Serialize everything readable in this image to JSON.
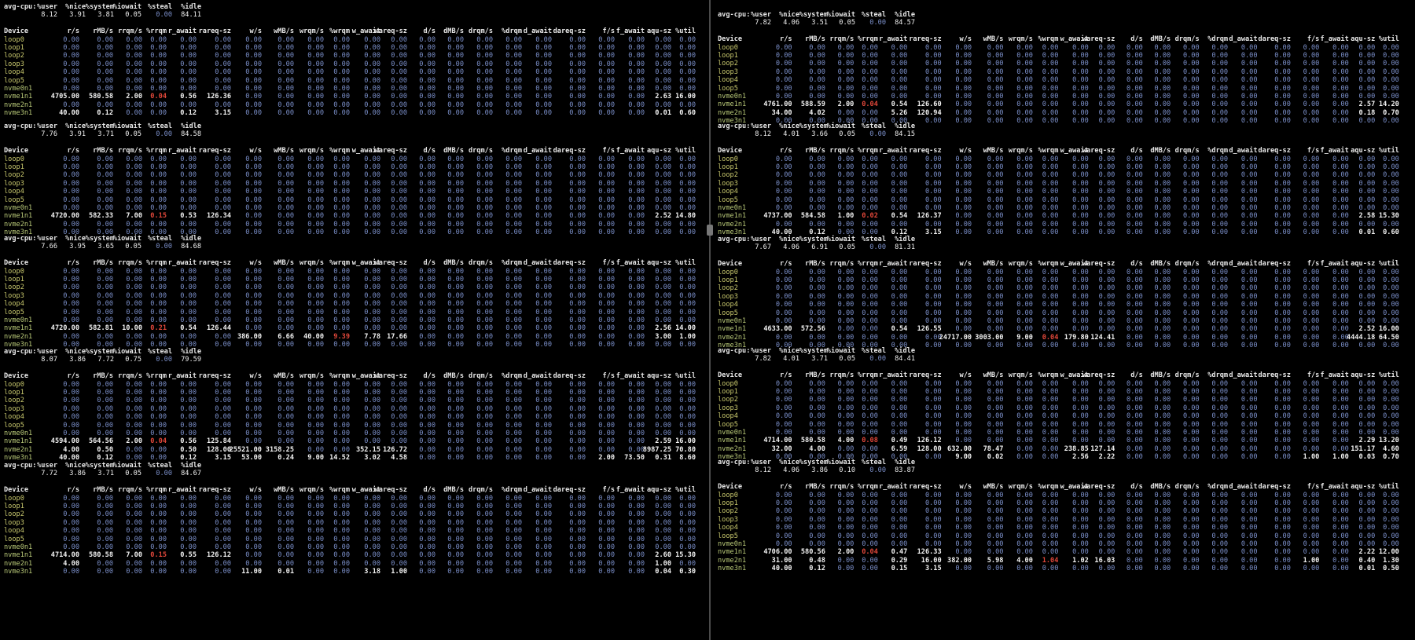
{
  "colors": {
    "background": "#000000",
    "zero": "#7b8fc9",
    "value": "#f2f2f2",
    "highlight": "#e0473a",
    "device": "#c9c96e"
  },
  "cpu_columns": [
    "avg-cpu:",
    "%user",
    "%nice",
    "%system",
    "%iowait",
    "%steal",
    "%idle"
  ],
  "device_columns": [
    "Device",
    "r/s",
    "rMB/s",
    "rrqm/s",
    "%rrqm",
    "r_await",
    "rareq-sz",
    "w/s",
    "wMB/s",
    "wrqm/s",
    "%wrqm",
    "w_await",
    "wareq-sz",
    "d/s",
    "dMB/s",
    "drqm/s",
    "%drqm",
    "d_await",
    "dareq-sz",
    "f/s",
    "f_await",
    "aqu-sz",
    "%util"
  ],
  "devices": [
    "loop0",
    "loop1",
    "loop2",
    "loop3",
    "loop4",
    "loop5",
    "nvme0n1",
    "nvme1n1",
    "nvme2n1",
    "nvme3n1"
  ],
  "panes": [
    {
      "name": "left",
      "blocks": [
        {
          "cpu": [
            "8.12",
            "3.91",
            "3.81",
            "0.05",
            "0.00",
            "84.11"
          ],
          "rows": {
            "nvme1n1": [
              "4705.00",
              "580.58",
              "2.00",
              "0.04",
              "0.56",
              "126.36",
              "0.00",
              "0.00",
              "0.00",
              "0.00",
              "0.00",
              "0.00",
              "0.00",
              "0.00",
              "0.00",
              "0.00",
              "0.00",
              "0.00",
              "0.00",
              "0.00",
              "2.63",
              "16.00"
            ],
            "nvme3n1": [
              "40.00",
              "0.12",
              "0.00",
              "0.00",
              "0.12",
              "3.15",
              "0.00",
              "0.00",
              "0.00",
              "0.00",
              "0.00",
              "0.00",
              "0.00",
              "0.00",
              "0.00",
              "0.00",
              "0.00",
              "0.00",
              "0.00",
              "0.00",
              "0.01",
              "0.60"
            ]
          }
        },
        {
          "cpu": [
            "7.76",
            "3.91",
            "3.71",
            "0.05",
            "0.00",
            "84.58"
          ],
          "rows": {
            "nvme1n1": [
              "4720.00",
              "582.33",
              "7.00",
              "0.15",
              "0.53",
              "126.34",
              "0.00",
              "0.00",
              "0.00",
              "0.00",
              "0.00",
              "0.00",
              "0.00",
              "0.00",
              "0.00",
              "0.00",
              "0.00",
              "0.00",
              "0.00",
              "0.00",
              "2.52",
              "14.80"
            ]
          }
        },
        {
          "cpu": [
            "7.66",
            "3.95",
            "3.65",
            "0.05",
            "0.00",
            "84.68"
          ],
          "rows": {
            "nvme1n1": [
              "4720.00",
              "582.81",
              "10.00",
              "0.21",
              "0.54",
              "126.44",
              "0.00",
              "0.00",
              "0.00",
              "0.00",
              "0.00",
              "0.00",
              "0.00",
              "0.00",
              "0.00",
              "0.00",
              "0.00",
              "0.00",
              "0.00",
              "0.00",
              "2.56",
              "14.00"
            ],
            "nvme2n1": [
              "0.00",
              "0.00",
              "0.00",
              "0.00",
              "0.00",
              "0.00",
              "386.00",
              "6.66",
              "40.00",
              "9.39",
              "7.78",
              "17.66",
              "0.00",
              "0.00",
              "0.00",
              "0.00",
              "0.00",
              "0.00",
              "0.00",
              "0.00",
              "3.00",
              "1.00"
            ]
          }
        },
        {
          "cpu": [
            "8.07",
            "3.86",
            "7.72",
            "0.75",
            "0.00",
            "79.59"
          ],
          "rows": {
            "nvme1n1": [
              "4594.00",
              "564.56",
              "2.00",
              "0.04",
              "0.56",
              "125.84",
              "0.00",
              "0.00",
              "0.00",
              "0.00",
              "0.00",
              "0.00",
              "0.00",
              "0.00",
              "0.00",
              "0.00",
              "0.00",
              "0.00",
              "0.00",
              "0.00",
              "2.59",
              "16.00"
            ],
            "nvme2n1": [
              "4.00",
              "0.50",
              "0.00",
              "0.00",
              "0.50",
              "128.00",
              "25521.00",
              "3158.25",
              "0.00",
              "0.00",
              "352.15",
              "126.72",
              "0.00",
              "0.00",
              "0.00",
              "0.00",
              "0.00",
              "0.00",
              "0.00",
              "0.00",
              "8987.25",
              "70.80"
            ],
            "nvme3n1": [
              "40.00",
              "0.12",
              "0.00",
              "0.00",
              "0.12",
              "3.15",
              "53.00",
              "0.24",
              "9.00",
              "14.52",
              "3.02",
              "4.58",
              "0.00",
              "0.00",
              "0.00",
              "0.00",
              "0.00",
              "0.00",
              "2.00",
              "73.50",
              "0.31",
              "8.60"
            ]
          }
        },
        {
          "cpu": [
            "7.72",
            "3.86",
            "3.71",
            "0.05",
            "0.00",
            "84.67"
          ],
          "rows": {
            "nvme1n1": [
              "4714.00",
              "580.58",
              "7.00",
              "0.15",
              "0.55",
              "126.12",
              "0.00",
              "0.00",
              "0.00",
              "0.00",
              "0.00",
              "0.00",
              "0.00",
              "0.00",
              "0.00",
              "0.00",
              "0.00",
              "0.00",
              "0.00",
              "0.00",
              "2.60",
              "15.30"
            ],
            "nvme2n1": [
              "4.00",
              "0.00",
              "0.00",
              "0.00",
              "0.00",
              "0.00",
              "0.00",
              "0.00",
              "0.00",
              "0.00",
              "0.00",
              "0.00",
              "0.00",
              "0.00",
              "0.00",
              "0.00",
              "0.00",
              "0.00",
              "0.00",
              "0.00",
              "1.00",
              "0.00"
            ],
            "nvme3n1": [
              "0.00",
              "0.00",
              "0.00",
              "0.00",
              "0.00",
              "0.00",
              "11.00",
              "0.01",
              "0.00",
              "0.00",
              "3.18",
              "1.00",
              "0.00",
              "0.00",
              "0.00",
              "0.00",
              "0.00",
              "0.00",
              "0.00",
              "0.00",
              "0.04",
              "0.30"
            ]
          }
        }
      ]
    },
    {
      "name": "right",
      "blocks": [
        {
          "cpu": [
            "7.82",
            "4.06",
            "3.51",
            "0.05",
            "0.00",
            "84.57"
          ],
          "rows": {
            "nvme1n1": [
              "4761.00",
              "588.59",
              "2.00",
              "0.04",
              "0.54",
              "126.60",
              "0.00",
              "0.00",
              "0.00",
              "0.00",
              "0.00",
              "0.00",
              "0.00",
              "0.00",
              "0.00",
              "0.00",
              "0.00",
              "0.00",
              "0.00",
              "0.00",
              "2.57",
              "14.20"
            ],
            "nvme2n1": [
              "34.00",
              "4.02",
              "0.00",
              "0.00",
              "5.26",
              "120.94",
              "0.00",
              "0.00",
              "0.00",
              "0.00",
              "0.00",
              "0.00",
              "0.00",
              "0.00",
              "0.00",
              "0.00",
              "0.00",
              "0.00",
              "0.00",
              "0.00",
              "0.18",
              "0.70"
            ]
          }
        },
        {
          "cpu": [
            "8.12",
            "4.01",
            "3.66",
            "0.05",
            "0.00",
            "84.15"
          ],
          "rows": {
            "nvme1n1": [
              "4737.00",
              "584.58",
              "1.00",
              "0.02",
              "0.54",
              "126.37",
              "0.00",
              "0.00",
              "0.00",
              "0.00",
              "0.00",
              "0.00",
              "0.00",
              "0.00",
              "0.00",
              "0.00",
              "0.00",
              "0.00",
              "0.00",
              "0.00",
              "2.58",
              "15.30"
            ],
            "nvme3n1": [
              "40.00",
              "0.12",
              "0.00",
              "0.00",
              "0.12",
              "3.15",
              "0.00",
              "0.00",
              "0.00",
              "0.00",
              "0.00",
              "0.00",
              "0.00",
              "0.00",
              "0.00",
              "0.00",
              "0.00",
              "0.00",
              "0.00",
              "0.00",
              "0.01",
              "0.60"
            ]
          }
        },
        {
          "cpu": [
            "7.67",
            "4.06",
            "6.91",
            "0.05",
            "0.00",
            "81.31"
          ],
          "rows": {
            "nvme1n1": [
              "4633.00",
              "572.56",
              "0.00",
              "0.00",
              "0.54",
              "126.55",
              "0.00",
              "0.00",
              "0.00",
              "0.00",
              "0.00",
              "0.00",
              "0.00",
              "0.00",
              "0.00",
              "0.00",
              "0.00",
              "0.00",
              "0.00",
              "0.00",
              "2.52",
              "16.00"
            ],
            "nvme2n1": [
              "0.00",
              "0.00",
              "0.00",
              "0.00",
              "0.00",
              "0.00",
              "24717.00",
              "3003.00",
              "9.00",
              "0.04",
              "179.80",
              "124.41",
              "0.00",
              "0.00",
              "0.00",
              "0.00",
              "0.00",
              "0.00",
              "0.00",
              "0.00",
              "4444.18",
              "64.50"
            ]
          }
        },
        {
          "cpu": [
            "7.82",
            "4.01",
            "3.71",
            "0.05",
            "0.00",
            "84.41"
          ],
          "rows": {
            "nvme1n1": [
              "4714.00",
              "580.58",
              "4.00",
              "0.08",
              "0.49",
              "126.12",
              "0.00",
              "0.00",
              "0.00",
              "0.00",
              "0.00",
              "0.00",
              "0.00",
              "0.00",
              "0.00",
              "0.00",
              "0.00",
              "0.00",
              "0.00",
              "0.00",
              "2.29",
              "13.20"
            ],
            "nvme2n1": [
              "32.00",
              "4.00",
              "0.00",
              "0.00",
              "6.59",
              "128.00",
              "632.00",
              "78.47",
              "0.00",
              "0.00",
              "238.85",
              "127.14",
              "0.00",
              "0.00",
              "0.00",
              "0.00",
              "0.00",
              "0.00",
              "0.00",
              "0.00",
              "151.17",
              "4.60"
            ],
            "nvme3n1": [
              "0.00",
              "0.00",
              "0.00",
              "0.00",
              "0.00",
              "0.00",
              "9.00",
              "0.02",
              "0.00",
              "0.00",
              "2.56",
              "2.22",
              "0.00",
              "0.00",
              "0.00",
              "0.00",
              "0.00",
              "0.00",
              "1.00",
              "1.00",
              "0.03",
              "0.70"
            ]
          }
        },
        {
          "cpu": [
            "8.12",
            "4.06",
            "3.86",
            "0.10",
            "0.00",
            "83.87"
          ],
          "rows": {
            "nvme1n1": [
              "4706.00",
              "580.56",
              "2.00",
              "0.04",
              "0.47",
              "126.33",
              "0.00",
              "0.00",
              "0.00",
              "0.00",
              "0.00",
              "0.00",
              "0.00",
              "0.00",
              "0.00",
              "0.00",
              "0.00",
              "0.00",
              "0.00",
              "0.00",
              "2.22",
              "12.00"
            ],
            "nvme2n1": [
              "31.00",
              "0.48",
              "0.00",
              "0.00",
              "0.29",
              "16.00",
              "382.00",
              "5.98",
              "4.00",
              "1.04",
              "1.02",
              "16.03",
              "0.00",
              "0.00",
              "0.00",
              "0.00",
              "0.00",
              "0.00",
              "1.00",
              "0.00",
              "0.40",
              "1.30"
            ],
            "nvme3n1": [
              "40.00",
              "0.12",
              "0.00",
              "0.00",
              "0.15",
              "3.15",
              "0.00",
              "0.00",
              "0.00",
              "0.00",
              "0.00",
              "0.00",
              "0.00",
              "0.00",
              "0.00",
              "0.00",
              "0.00",
              "0.00",
              "0.00",
              "0.00",
              "0.01",
              "0.50"
            ]
          }
        }
      ]
    }
  ]
}
